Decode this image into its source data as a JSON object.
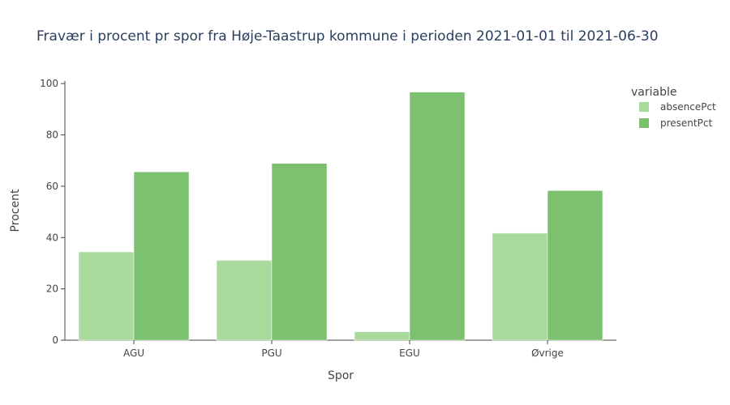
{
  "chart_data": {
    "type": "bar",
    "title": "Fravær i procent pr spor fra Høje-Taastrup kommune i perioden 2021-01-01 til 2021-06-30",
    "xlabel": "Spor",
    "ylabel": "Procent",
    "categories": [
      "AGU",
      "PGU",
      "EGU",
      "Øvrige"
    ],
    "series": [
      {
        "name": "absencePct",
        "values": [
          34.4,
          31.1,
          3.3,
          41.7
        ],
        "color": "#a8da9b"
      },
      {
        "name": "presentPct",
        "values": [
          65.6,
          68.9,
          96.7,
          58.3
        ],
        "color": "#7bc16f"
      }
    ],
    "ylim": [
      0,
      101
    ],
    "yticks": [
      0,
      20,
      40,
      60,
      80,
      100
    ],
    "legend_title": "variable",
    "legend_position": "top-right",
    "grid": false
  }
}
